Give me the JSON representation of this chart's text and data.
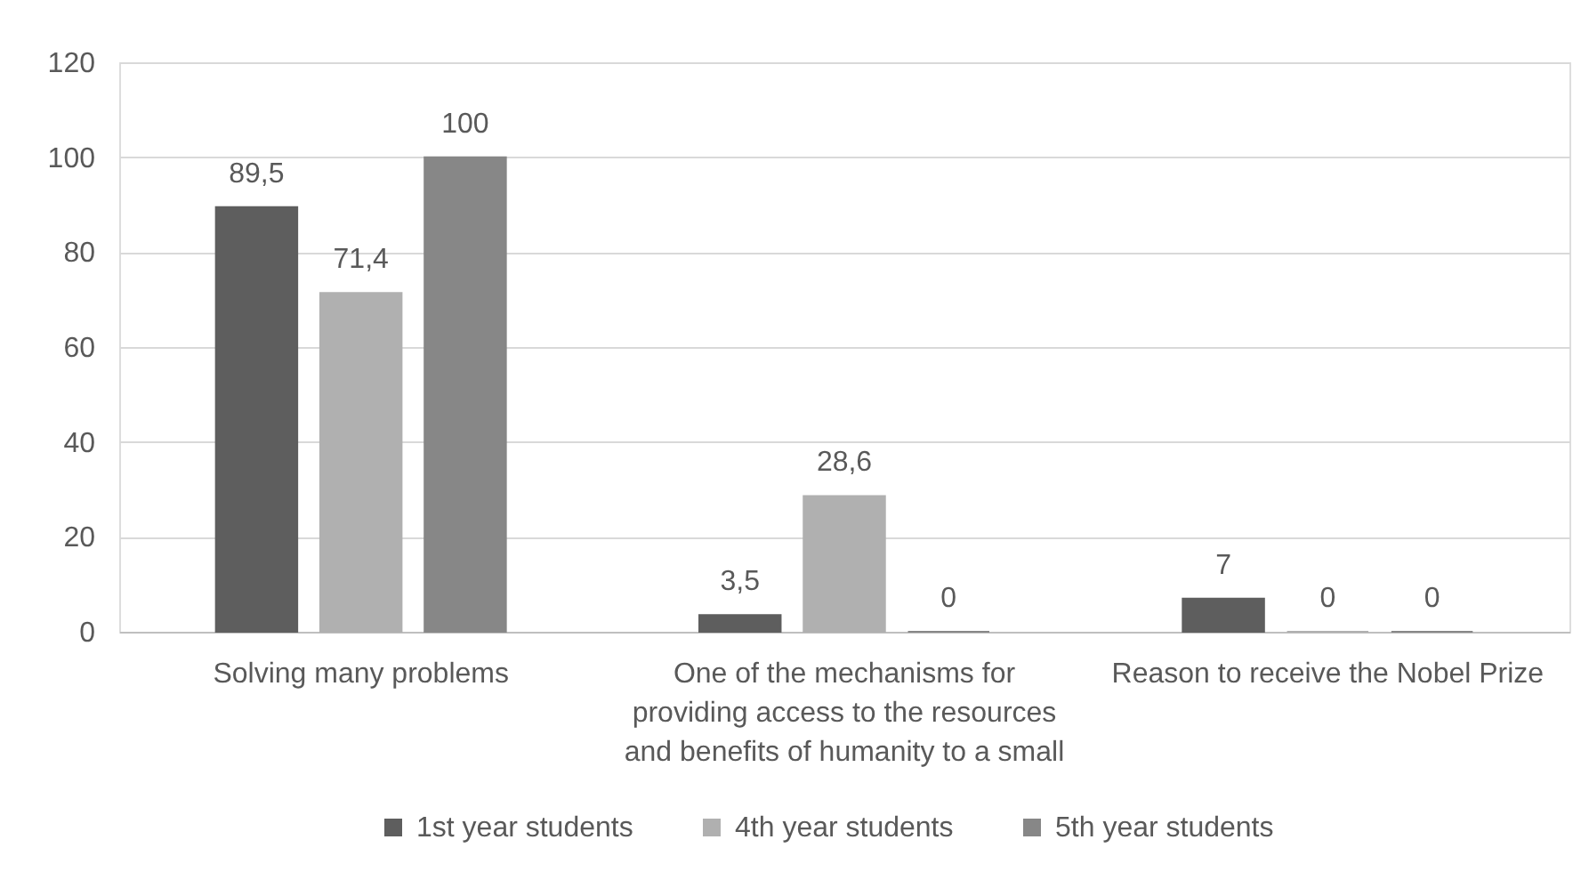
{
  "chart_data": {
    "type": "bar",
    "categories": [
      "Solving many problems",
      "One of the mechanisms for\nproviding access to the resources\nand benefits of humanity to a small",
      "Reason to receive the Nobel Prize"
    ],
    "series": [
      {
        "name": "1st year students",
        "color": "#5e5e5e",
        "values": [
          89.5,
          3.5,
          7
        ],
        "value_labels": [
          "89,5",
          "3,5",
          "7"
        ]
      },
      {
        "name": "4th year students",
        "color": "#b0b0b0",
        "values": [
          71.4,
          28.6,
          0
        ],
        "value_labels": [
          "71,4",
          "28,6",
          "0"
        ]
      },
      {
        "name": "5th year students",
        "color": "#878787",
        "values": [
          100,
          0,
          0
        ],
        "value_labels": [
          "100",
          "0",
          "0"
        ]
      }
    ],
    "ylim": [
      0,
      120
    ],
    "yticks": [
      0,
      20,
      40,
      60,
      80,
      100,
      120
    ],
    "grid": "y",
    "legend": "bottom"
  }
}
